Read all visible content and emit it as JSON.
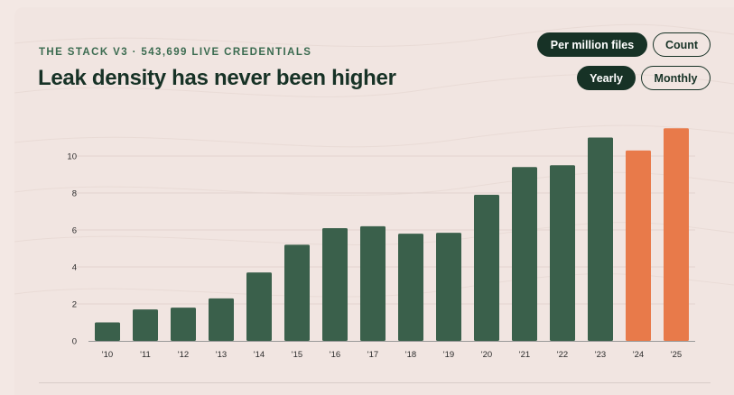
{
  "header": {
    "eyebrow": "THE STACK V3 · 543,699 LIVE CREDENTIALS",
    "title": "Leak density has never been higher"
  },
  "controls": {
    "metric": [
      {
        "label": "Per million files",
        "active": true
      },
      {
        "label": "Count",
        "active": false
      }
    ],
    "granularity": [
      {
        "label": "Yearly",
        "active": true
      },
      {
        "label": "Monthly",
        "active": false
      }
    ]
  },
  "colors": {
    "bar": "#3a604b",
    "highlight": "#e87a4a",
    "text": "#173226",
    "accent": "#3b6b50"
  },
  "chart_data": {
    "type": "bar",
    "categories": [
      "'10",
      "'11",
      "'12",
      "'13",
      "'14",
      "'15",
      "'16",
      "'17",
      "'18",
      "'19",
      "'20",
      "'21",
      "'22",
      "'23",
      "'24",
      "'25"
    ],
    "values": [
      1.0,
      1.7,
      1.8,
      2.3,
      3.7,
      5.2,
      6.1,
      6.2,
      5.8,
      5.85,
      7.9,
      9.4,
      9.5,
      11.0,
      10.3,
      11.5
    ],
    "highlight": [
      "'24",
      "'25"
    ],
    "ylim": [
      0,
      12
    ],
    "yticks": [
      0,
      2,
      4,
      6,
      8,
      10
    ],
    "grid": true,
    "title": "",
    "xlabel": "",
    "ylabel": ""
  }
}
